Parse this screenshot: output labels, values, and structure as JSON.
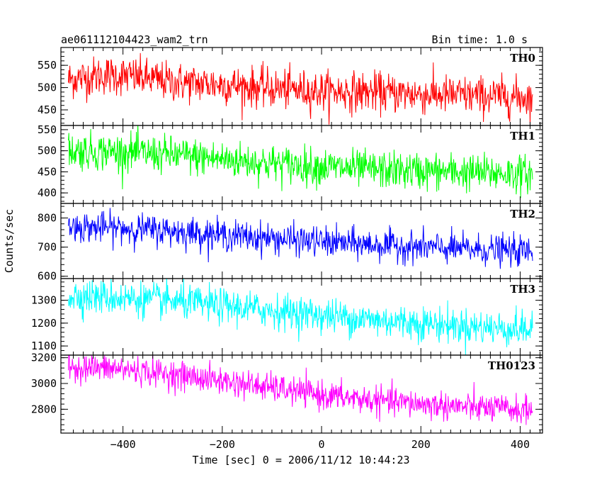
{
  "chart_data": {
    "type": "line",
    "title_left": "ae061112104423_wam2_trn",
    "title_right": "Bin time: 1.0 s",
    "xlabel": "Time [sec] 0 = 2006/11/12 10:44:23",
    "ylabel": "Counts/sec",
    "xlim": [
      -525,
      445
    ],
    "x_ticks": [
      -400,
      -200,
      0,
      200,
      400
    ],
    "x_range": [
      -510,
      425
    ],
    "bin_time_s": 1.0,
    "panels": [
      {
        "name": "TH0",
        "color": "#ff0000",
        "ylim": [
          415,
          590
        ],
        "yticks": [
          450,
          500,
          550
        ],
        "trend": {
          "x": [
            -510,
            -440,
            -380,
            -300,
            -200,
            -100,
            0,
            100,
            200,
            300,
            425
          ],
          "y": [
            518,
            528,
            525,
            512,
            507,
            498,
            492,
            490,
            485,
            482,
            478
          ]
        },
        "noise_amplitude": 22
      },
      {
        "name": "TH1",
        "color": "#00ff00",
        "ylim": [
          375,
          560
        ],
        "yticks": [
          400,
          450,
          500,
          550
        ],
        "trend": {
          "x": [
            -510,
            -400,
            -300,
            -200,
            -100,
            0,
            100,
            200,
            300,
            425
          ],
          "y": [
            500,
            497,
            490,
            480,
            470,
            462,
            455,
            452,
            448,
            445
          ]
        },
        "noise_amplitude": 22
      },
      {
        "name": "TH2",
        "color": "#0000ff",
        "ylim": [
          592,
          850
        ],
        "yticks": [
          600,
          700,
          800
        ],
        "trend": {
          "x": [
            -510,
            -400,
            -300,
            -200,
            -100,
            0,
            100,
            200,
            300,
            425
          ],
          "y": [
            770,
            765,
            755,
            742,
            730,
            718,
            708,
            700,
            692,
            685
          ]
        },
        "noise_amplitude": 26
      },
      {
        "name": "TH3",
        "color": "#00ffff",
        "ylim": [
          1060,
          1395
        ],
        "yticks": [
          1100,
          1200,
          1300
        ],
        "trend": {
          "x": [
            -510,
            -400,
            -300,
            -200,
            -100,
            0,
            100,
            200,
            300,
            425
          ],
          "y": [
            1320,
            1310,
            1295,
            1275,
            1255,
            1235,
            1215,
            1200,
            1185,
            1170
          ]
        },
        "noise_amplitude": 38
      },
      {
        "name": "TH0123",
        "color": "#ff00ff",
        "ylim": [
          2615,
          3220
        ],
        "yticks": [
          2800,
          3000,
          3200
        ],
        "trend": {
          "x": [
            -510,
            -400,
            -300,
            -200,
            -100,
            0,
            100,
            200,
            300,
            425
          ],
          "y": [
            3130,
            3110,
            3070,
            3020,
            2965,
            2910,
            2870,
            2840,
            2815,
            2790
          ]
        },
        "noise_amplitude": 55
      }
    ]
  }
}
